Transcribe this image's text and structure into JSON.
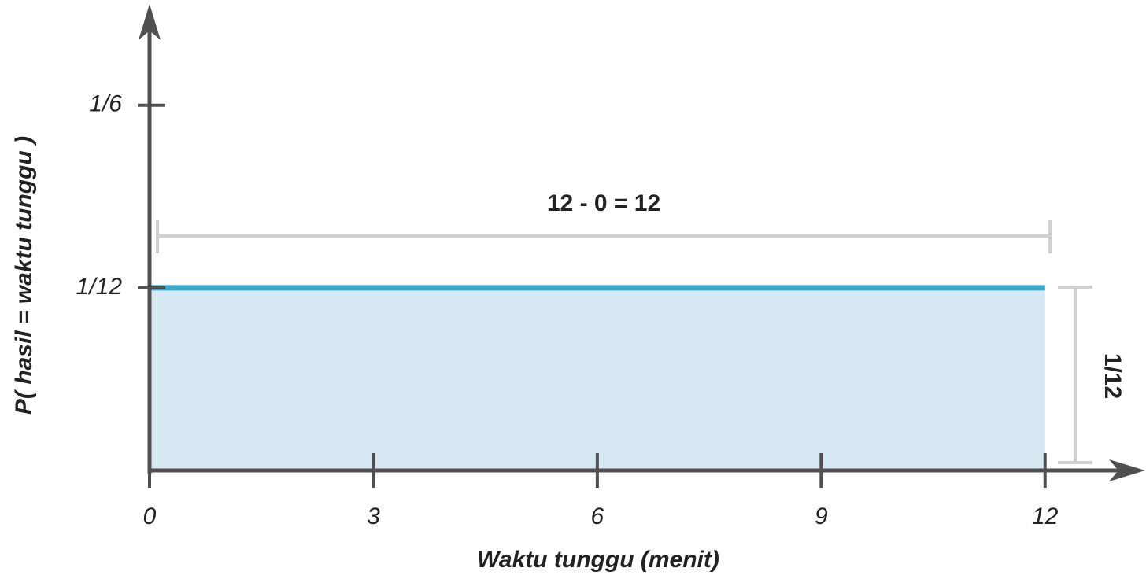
{
  "chart_data": {
    "type": "area",
    "x_label": "Waktu tunggu (menit)",
    "y_label": "P( hasil = waktu tunggu )",
    "x": [
      0,
      12
    ],
    "series": [
      {
        "values": [
          0.08333,
          0.08333
        ],
        "color": "#3aa8c8",
        "fill": "#d6e8f1"
      }
    ],
    "xlim": [
      0,
      13.3
    ],
    "ylim": [
      0,
      0.21
    ],
    "xticks": [
      0,
      3,
      6,
      9,
      12
    ],
    "yticks": [
      {
        "value": 0.08333,
        "label": "1/12"
      },
      {
        "value": 0.16667,
        "label": "1/6"
      }
    ],
    "annotations": {
      "width": "12 - 0  = 12",
      "height": "1/12"
    }
  }
}
